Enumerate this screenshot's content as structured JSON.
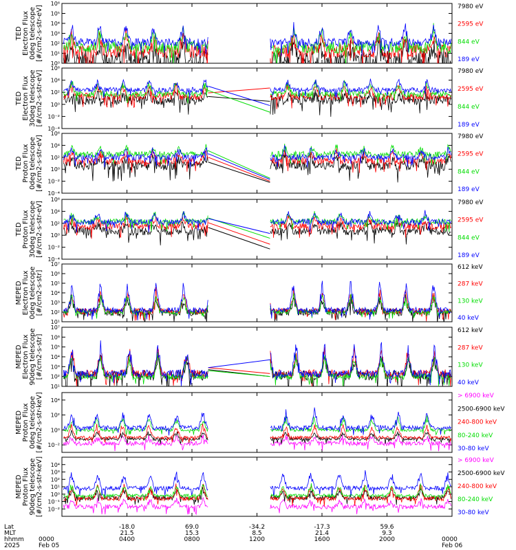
{
  "chart_data": [
    {
      "type": "line",
      "instrument": "TED",
      "ylabel": [
        "TED",
        "Electron Flux",
        "0deg telescope",
        "[#/cm2-s-str-eV]"
      ],
      "ylog": true,
      "ylim_exp": [
        0,
        6
      ],
      "yticks_exp": [
        0,
        1,
        2,
        3,
        4,
        5,
        6
      ],
      "tick_labels": [
        "10⁰",
        "10¹",
        "10²",
        "10³",
        "10⁴",
        "10⁵",
        "10⁶"
      ],
      "bridge_end_exp": null,
      "series": [
        {
          "name": "7980 eV",
          "color": "#000000",
          "base_exp": 0.4,
          "noise": 0.9,
          "spike": 1.6
        },
        {
          "name": "2595 eV",
          "color": "#ff0000",
          "base_exp": 1.2,
          "noise": 0.7,
          "spike": 1.8
        },
        {
          "name": "844 eV",
          "color": "#00dd00",
          "base_exp": 1.6,
          "noise": 0.6,
          "spike": 1.8
        },
        {
          "name": "189 eV",
          "color": "#0000ff",
          "base_exp": 2.1,
          "noise": 0.4,
          "spike": 1.7
        }
      ]
    },
    {
      "type": "line",
      "instrument": "TED",
      "ylabel": [
        "TED",
        "Electron Flux",
        "30deg telescope",
        "[#/cm2-s-str-eV]"
      ],
      "ylog": true,
      "ylim_exp": [
        -4,
        6
      ],
      "yticks_exp": [
        -4,
        -2,
        0,
        2,
        4,
        6
      ],
      "tick_labels": [
        "10⁻⁴",
        "10⁻²",
        "10⁰",
        "10²",
        "10⁴",
        "10⁶"
      ],
      "bridge_end_exp": [
        0.5,
        2.7,
        -1.3,
        -0.2
      ],
      "series": [
        {
          "name": "7980 eV",
          "color": "#000000",
          "base_exp": 0.7,
          "noise": 0.8,
          "spike": 1.2
        },
        {
          "name": "2595 eV",
          "color": "#ff0000",
          "base_exp": 1.3,
          "noise": 0.6,
          "spike": 2.0
        },
        {
          "name": "844 eV",
          "color": "#00dd00",
          "base_exp": 1.7,
          "noise": 0.5,
          "spike": 2.0
        },
        {
          "name": "189 eV",
          "color": "#0000ff",
          "base_exp": 2.4,
          "noise": 0.4,
          "spike": 1.7
        }
      ]
    },
    {
      "type": "line",
      "instrument": "TED",
      "ylabel": [
        "TED",
        "Proton Flux",
        "0deg telescope",
        "[#/cm2-s-str-eV]"
      ],
      "ylog": true,
      "ylim_exp": [
        -4,
        6
      ],
      "yticks_exp": [
        -4,
        -2,
        0,
        2,
        4,
        6
      ],
      "tick_labels": [
        "10⁻⁴",
        "10⁻²",
        "10⁰",
        "10²",
        "10⁴",
        "10⁶"
      ],
      "bridge_end_exp": [
        -2.2,
        -2.0,
        -1.5,
        -1.7
      ],
      "series": [
        {
          "name": "7980 eV",
          "color": "#000000",
          "base_exp": 0.6,
          "noise": 0.8,
          "spike": 1.6
        },
        {
          "name": "2595 eV",
          "color": "#ff0000",
          "base_exp": 1.4,
          "noise": 0.6,
          "spike": 1.7
        },
        {
          "name": "844 eV",
          "color": "#00dd00",
          "base_exp": 2.5,
          "noise": 0.5,
          "spike": 1.4
        },
        {
          "name": "189 eV",
          "color": "#0000ff",
          "base_exp": 2.0,
          "noise": 0.5,
          "spike": 1.5
        }
      ]
    },
    {
      "type": "line",
      "instrument": "TED",
      "ylabel": [
        "TED",
        "Proton Flux",
        "30deg telescope",
        "[#/cm2-s-str-eV]"
      ],
      "ylog": true,
      "ylim_exp": [
        -4,
        6
      ],
      "yticks_exp": [
        -4,
        -2,
        0,
        2,
        4,
        6
      ],
      "tick_labels": [
        "10⁻⁴",
        "10⁻²",
        "10⁰",
        "10²",
        "10⁴",
        "10⁶"
      ],
      "bridge_end_exp": [
        -2.3,
        -1.5,
        -0.5,
        0.3
      ],
      "series": [
        {
          "name": "7980 eV",
          "color": "#000000",
          "base_exp": 0.7,
          "noise": 0.7,
          "spike": 1.4
        },
        {
          "name": "2595 eV",
          "color": "#ff0000",
          "base_exp": 1.5,
          "noise": 0.6,
          "spike": 1.5
        },
        {
          "name": "844 eV",
          "color": "#00dd00",
          "base_exp": 2.3,
          "noise": 0.5,
          "spike": 1.4
        },
        {
          "name": "189 eV",
          "color": "#0000ff",
          "base_exp": 2.2,
          "noise": 0.5,
          "spike": 1.6
        }
      ]
    },
    {
      "type": "line",
      "instrument": "MEPED",
      "ylabel": [
        "MEPED",
        "Electron Flux",
        "0deg telescope",
        "[#/cm2-s-str]"
      ],
      "ylog": true,
      "ylim_exp": [
        1,
        7
      ],
      "yticks_exp": [
        1,
        2,
        3,
        4,
        5,
        6,
        7
      ],
      "tick_labels": [
        "10¹",
        "10²",
        "10³",
        "10⁴",
        "10⁵",
        "10⁶",
        "10⁷"
      ],
      "bridge_end_exp": null,
      "series": [
        {
          "name": "612 keV",
          "color": "#000000",
          "base_exp": 2.0,
          "noise": 0.4,
          "spike": 1.5
        },
        {
          "name": "287 keV",
          "color": "#ff0000",
          "base_exp": 2.1,
          "noise": 0.3,
          "spike": 2.3
        },
        {
          "name": "130 keV",
          "color": "#00dd00",
          "base_exp": 2.0,
          "noise": 0.2,
          "spike": 2.0
        },
        {
          "name": "40 keV",
          "color": "#0000ff",
          "base_exp": 2.2,
          "noise": 0.3,
          "spike": 3.0
        }
      ]
    },
    {
      "type": "line",
      "instrument": "MEPED",
      "ylabel": [
        "MEPED",
        "Electron Flux",
        "90deg telescope",
        "[#/cm2-s-str]"
      ],
      "ylog": true,
      "ylim_exp": [
        1,
        7
      ],
      "yticks_exp": [
        1,
        2,
        3,
        4,
        5,
        6,
        7
      ],
      "tick_labels": [
        "10¹",
        "10²",
        "10³",
        "10⁴",
        "10⁵",
        "10⁶",
        "10⁷"
      ],
      "bridge_end_exp": [
        2.0,
        2.3,
        2.0,
        3.7
      ],
      "series": [
        {
          "name": "612 keV",
          "color": "#000000",
          "base_exp": 2.1,
          "noise": 0.5,
          "spike": 2.0
        },
        {
          "name": "287 keV",
          "color": "#ff0000",
          "base_exp": 2.3,
          "noise": 0.4,
          "spike": 2.6
        },
        {
          "name": "130 keV",
          "color": "#00dd00",
          "base_exp": 2.0,
          "noise": 0.3,
          "spike": 2.3
        },
        {
          "name": "40 keV",
          "color": "#0000ff",
          "base_exp": 2.3,
          "noise": 0.4,
          "spike": 3.0
        }
      ]
    },
    {
      "type": "line",
      "instrument": "MEPED",
      "ylabel": [
        "MEPED",
        "Proton Flux",
        "0deg telescope",
        "[#/cm2-s-str-keV]"
      ],
      "ylog": true,
      "ylim_exp": [
        -3,
        5
      ],
      "yticks_exp": [
        -2,
        0,
        2,
        4
      ],
      "tick_labels": [
        "10⁻²",
        "10⁰",
        "10²",
        "10⁴"
      ],
      "bridge_end_exp": null,
      "series": [
        {
          "name": "> 6900 keV",
          "color": "#ff00ff",
          "base_exp": -1.8,
          "noise": 0.3,
          "spike": 1.0
        },
        {
          "name": "2500-6900 keV",
          "color": "#000000",
          "base_exp": -1.2,
          "noise": 0.2,
          "spike": 1.0
        },
        {
          "name": "240-800 keV",
          "color": "#ff0000",
          "base_exp": -1.0,
          "noise": 0.2,
          "spike": 1.8
        },
        {
          "name": "80-240 keV",
          "color": "#00dd00",
          "base_exp": 0.0,
          "noise": 0.2,
          "spike": 1.8
        },
        {
          "name": "30-80 keV",
          "color": "#0000ff",
          "base_exp": 0.3,
          "noise": 0.3,
          "spike": 2.3
        }
      ]
    },
    {
      "type": "line",
      "instrument": "MEPED",
      "ylabel": [
        "MEPED",
        "Proton Flux",
        "90deg telescope",
        "[#/cm2-s-str-keV]"
      ],
      "ylog": true,
      "ylim_exp": [
        -3,
        5
      ],
      "yticks_exp": [
        -2,
        -1,
        0,
        1,
        2,
        3,
        4
      ],
      "tick_labels": [
        "10⁻²",
        "10⁻¹",
        "10⁰",
        "10¹",
        "10²",
        "10³",
        "10⁴"
      ],
      "bridge_end_exp": null,
      "series": [
        {
          "name": "> 6900 keV",
          "color": "#ff00ff",
          "base_exp": -1.7,
          "noise": 0.3,
          "spike": 1.0
        },
        {
          "name": "2500-6900 keV",
          "color": "#000000",
          "base_exp": -0.5,
          "noise": 0.3,
          "spike": 1.2
        },
        {
          "name": "240-800 keV",
          "color": "#ff0000",
          "base_exp": -0.6,
          "noise": 0.3,
          "spike": 2.0
        },
        {
          "name": "80-240 keV",
          "color": "#00dd00",
          "base_exp": -0.2,
          "noise": 0.2,
          "spike": 1.6
        },
        {
          "name": "30-80 keV",
          "color": "#0000ff",
          "base_exp": 0.8,
          "noise": 0.3,
          "spike": 2.3
        }
      ]
    }
  ],
  "time_axis": {
    "range_hours": [
      0,
      24
    ],
    "data_gap_hours": [
      9.0,
      12.8
    ],
    "row_labels": [
      "Lat",
      "MLT",
      "hhmm",
      "2025"
    ],
    "ticks": [
      {
        "hour": 0,
        "lat": "",
        "mlt": "",
        "hhmm": "0000",
        "date": "Feb 05"
      },
      {
        "hour": 4,
        "lat": "-18.0",
        "mlt": "21.5",
        "hhmm": "0400",
        "date": ""
      },
      {
        "hour": 8,
        "lat": "69.0",
        "mlt": "15.3",
        "hhmm": "0800",
        "date": ""
      },
      {
        "hour": 12,
        "lat": "-34.2",
        "mlt": "8.5",
        "hhmm": "1200",
        "date": ""
      },
      {
        "hour": 16,
        "lat": "-17.3",
        "mlt": "21.4",
        "hhmm": "1600",
        "date": ""
      },
      {
        "hour": 20,
        "lat": "59.6",
        "mlt": "9.3",
        "hhmm": "2000",
        "date": ""
      },
      {
        "hour": 24,
        "lat": "",
        "mlt": "",
        "hhmm": "0000",
        "date": "Feb 06"
      }
    ]
  }
}
